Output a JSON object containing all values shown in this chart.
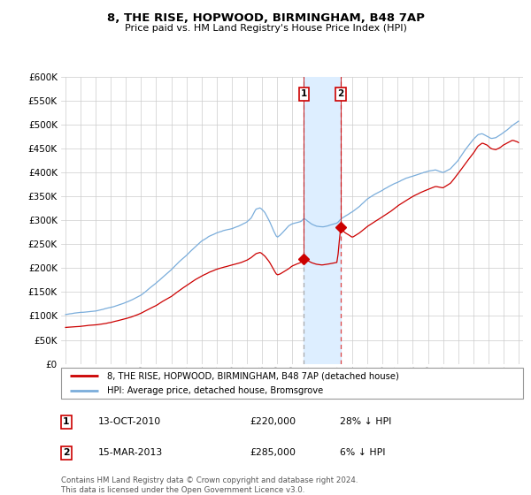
{
  "title": "8, THE RISE, HOPWOOD, BIRMINGHAM, B48 7AP",
  "subtitle": "Price paid vs. HM Land Registry's House Price Index (HPI)",
  "legend_line1": "8, THE RISE, HOPWOOD, BIRMINGHAM, B48 7AP (detached house)",
  "legend_line2": "HPI: Average price, detached house, Bromsgrove",
  "annotation1_label": "1",
  "annotation1_date": "13-OCT-2010",
  "annotation1_price": "£220,000",
  "annotation1_hpi": "28% ↓ HPI",
  "annotation1_year": 2010.79,
  "annotation1_value": 220000,
  "annotation2_label": "2",
  "annotation2_date": "15-MAR-2013",
  "annotation2_price": "£285,000",
  "annotation2_hpi": "6% ↓ HPI",
  "annotation2_year": 2013.21,
  "annotation2_value": 285000,
  "red_line_color": "#cc0000",
  "blue_line_color": "#7aaddb",
  "shade_color": "#ddeeff",
  "vline1_color": "#aaaaaa",
  "vline2_color": "#dd4444",
  "footer1": "Contains HM Land Registry data © Crown copyright and database right 2024.",
  "footer2": "This data is licensed under the Open Government Licence v3.0.",
  "ylim_max": 600000,
  "yticks": [
    0,
    50000,
    100000,
    150000,
    200000,
    250000,
    300000,
    350000,
    400000,
    450000,
    500000,
    550000,
    600000
  ],
  "xlim_start": 1994.7,
  "xlim_end": 2025.3,
  "hpi_anchors": [
    [
      1995.0,
      103000
    ],
    [
      1995.5,
      105000
    ],
    [
      1996.0,
      107000
    ],
    [
      1996.5,
      109000
    ],
    [
      1997.0,
      111000
    ],
    [
      1997.5,
      115000
    ],
    [
      1998.0,
      119000
    ],
    [
      1998.5,
      124000
    ],
    [
      1999.0,
      130000
    ],
    [
      1999.5,
      137000
    ],
    [
      2000.0,
      145000
    ],
    [
      2000.5,
      158000
    ],
    [
      2001.0,
      170000
    ],
    [
      2001.5,
      184000
    ],
    [
      2002.0,
      198000
    ],
    [
      2002.5,
      214000
    ],
    [
      2003.0,
      228000
    ],
    [
      2003.5,
      244000
    ],
    [
      2004.0,
      258000
    ],
    [
      2004.5,
      268000
    ],
    [
      2005.0,
      275000
    ],
    [
      2005.5,
      280000
    ],
    [
      2006.0,
      284000
    ],
    [
      2006.5,
      290000
    ],
    [
      2007.0,
      298000
    ],
    [
      2007.3,
      307000
    ],
    [
      2007.6,
      325000
    ],
    [
      2007.9,
      328000
    ],
    [
      2008.2,
      318000
    ],
    [
      2008.5,
      300000
    ],
    [
      2008.8,
      278000
    ],
    [
      2009.0,
      265000
    ],
    [
      2009.2,
      270000
    ],
    [
      2009.5,
      280000
    ],
    [
      2009.8,
      290000
    ],
    [
      2010.0,
      293000
    ],
    [
      2010.3,
      296000
    ],
    [
      2010.6,
      298000
    ],
    [
      2010.79,
      305000
    ],
    [
      2011.0,
      300000
    ],
    [
      2011.3,
      293000
    ],
    [
      2011.6,
      289000
    ],
    [
      2012.0,
      287000
    ],
    [
      2012.5,
      290000
    ],
    [
      2013.0,
      294000
    ],
    [
      2013.21,
      302000
    ],
    [
      2013.5,
      308000
    ],
    [
      2014.0,
      318000
    ],
    [
      2014.5,
      330000
    ],
    [
      2015.0,
      345000
    ],
    [
      2015.5,
      355000
    ],
    [
      2016.0,
      363000
    ],
    [
      2016.5,
      372000
    ],
    [
      2017.0,
      380000
    ],
    [
      2017.5,
      388000
    ],
    [
      2018.0,
      393000
    ],
    [
      2018.5,
      398000
    ],
    [
      2019.0,
      403000
    ],
    [
      2019.5,
      406000
    ],
    [
      2020.0,
      400000
    ],
    [
      2020.5,
      408000
    ],
    [
      2021.0,
      425000
    ],
    [
      2021.5,
      448000
    ],
    [
      2022.0,
      468000
    ],
    [
      2022.3,
      478000
    ],
    [
      2022.6,
      480000
    ],
    [
      2022.9,
      475000
    ],
    [
      2023.2,
      470000
    ],
    [
      2023.5,
      472000
    ],
    [
      2023.8,
      478000
    ],
    [
      2024.0,
      483000
    ],
    [
      2024.3,
      490000
    ],
    [
      2024.6,
      498000
    ],
    [
      2024.9,
      505000
    ],
    [
      2025.0,
      507000
    ]
  ],
  "pp_anchors": [
    [
      1995.0,
      76000
    ],
    [
      1995.5,
      77000
    ],
    [
      1996.0,
      78000
    ],
    [
      1996.5,
      79500
    ],
    [
      1997.0,
      81000
    ],
    [
      1997.5,
      83000
    ],
    [
      1998.0,
      86000
    ],
    [
      1998.5,
      90000
    ],
    [
      1999.0,
      94000
    ],
    [
      1999.5,
      99000
    ],
    [
      2000.0,
      105000
    ],
    [
      2000.5,
      113000
    ],
    [
      2001.0,
      121000
    ],
    [
      2001.5,
      131000
    ],
    [
      2002.0,
      140000
    ],
    [
      2002.5,
      152000
    ],
    [
      2003.0,
      163000
    ],
    [
      2003.5,
      174000
    ],
    [
      2004.0,
      183000
    ],
    [
      2004.5,
      191000
    ],
    [
      2005.0,
      197000
    ],
    [
      2005.5,
      202000
    ],
    [
      2006.0,
      206000
    ],
    [
      2006.5,
      210000
    ],
    [
      2007.0,
      216000
    ],
    [
      2007.3,
      222000
    ],
    [
      2007.6,
      230000
    ],
    [
      2007.9,
      233000
    ],
    [
      2008.2,
      225000
    ],
    [
      2008.5,
      213000
    ],
    [
      2008.8,
      196000
    ],
    [
      2009.0,
      186000
    ],
    [
      2009.2,
      188000
    ],
    [
      2009.5,
      194000
    ],
    [
      2009.8,
      200000
    ],
    [
      2010.0,
      205000
    ],
    [
      2010.3,
      209000
    ],
    [
      2010.6,
      213000
    ],
    [
      2010.79,
      220000
    ],
    [
      2011.0,
      217000
    ],
    [
      2011.3,
      212000
    ],
    [
      2011.6,
      209000
    ],
    [
      2012.0,
      207000
    ],
    [
      2012.5,
      210000
    ],
    [
      2013.0,
      213000
    ],
    [
      2013.21,
      285000
    ],
    [
      2013.5,
      275000
    ],
    [
      2014.0,
      265000
    ],
    [
      2014.5,
      275000
    ],
    [
      2015.0,
      288000
    ],
    [
      2015.5,
      298000
    ],
    [
      2016.0,
      308000
    ],
    [
      2016.5,
      318000
    ],
    [
      2017.0,
      330000
    ],
    [
      2017.5,
      340000
    ],
    [
      2018.0,
      350000
    ],
    [
      2018.5,
      358000
    ],
    [
      2019.0,
      365000
    ],
    [
      2019.5,
      371000
    ],
    [
      2020.0,
      368000
    ],
    [
      2020.5,
      378000
    ],
    [
      2021.0,
      398000
    ],
    [
      2021.5,
      420000
    ],
    [
      2022.0,
      440000
    ],
    [
      2022.3,
      455000
    ],
    [
      2022.6,
      462000
    ],
    [
      2022.9,
      458000
    ],
    [
      2023.2,
      450000
    ],
    [
      2023.5,
      448000
    ],
    [
      2023.8,
      453000
    ],
    [
      2024.0,
      458000
    ],
    [
      2024.3,
      463000
    ],
    [
      2024.6,
      468000
    ],
    [
      2024.9,
      465000
    ],
    [
      2025.0,
      463000
    ]
  ]
}
